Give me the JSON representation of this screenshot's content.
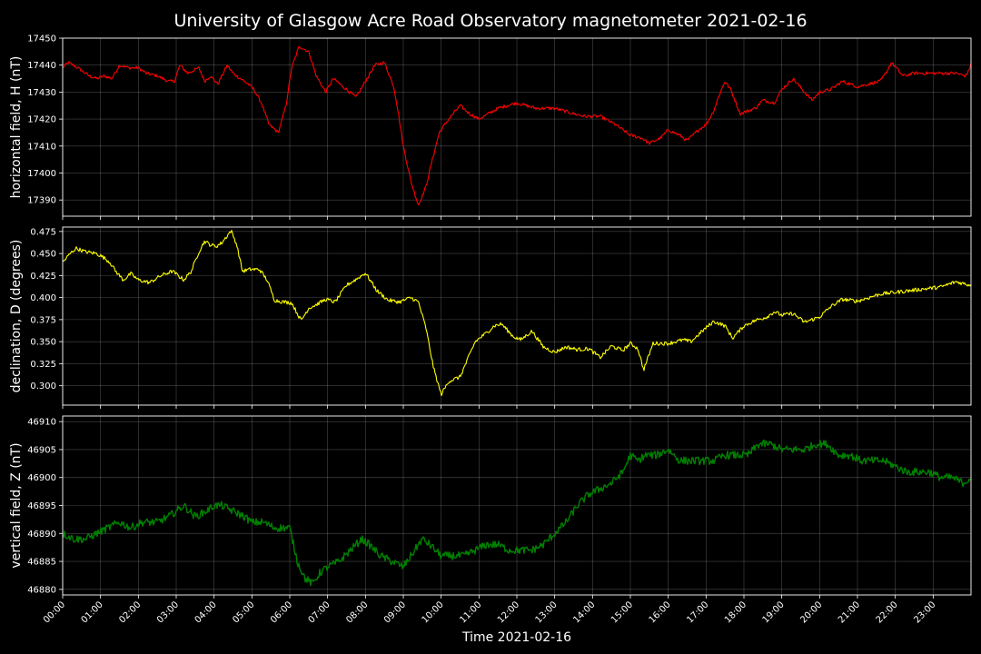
{
  "chart_data": {
    "type": "line",
    "title": "University of Glasgow Acre Road Observatory magnetometer 2021-02-16",
    "xlabel": "Time 2021-02-16",
    "x_ticks": [
      "00:00",
      "01:00",
      "02:00",
      "03:00",
      "04:00",
      "05:00",
      "06:00",
      "07:00",
      "08:00",
      "09:00",
      "10:00",
      "11:00",
      "12:00",
      "13:00",
      "14:00",
      "15:00",
      "16:00",
      "17:00",
      "18:00",
      "19:00",
      "20:00",
      "21:00",
      "22:00",
      "23:00"
    ],
    "xlim_hours": [
      0,
      24
    ],
    "grid": true,
    "panels": [
      {
        "ylabel": "horizontal field, H (nT)",
        "color": "#ff0000",
        "ylim": [
          17384,
          17450
        ],
        "yticks": [
          17390,
          17400,
          17410,
          17420,
          17430,
          17440,
          17450
        ],
        "noise": 0.6,
        "series": {
          "x": [
            0,
            0.15,
            0.4,
            0.7,
            0.9,
            1.1,
            1.3,
            1.5,
            1.75,
            2.0,
            2.2,
            2.5,
            2.8,
            2.95,
            3.1,
            3.3,
            3.6,
            3.75,
            3.9,
            4.1,
            4.35,
            4.5,
            4.7,
            4.9,
            5.05,
            5.25,
            5.45,
            5.7,
            5.9,
            6.05,
            6.25,
            6.5,
            6.7,
            6.95,
            7.15,
            7.5,
            7.75,
            8.0,
            8.25,
            8.5,
            8.75,
            8.85,
            9.0,
            9.2,
            9.4,
            9.6,
            9.75,
            9.95,
            10.2,
            10.5,
            10.75,
            11.0,
            11.5,
            12.0,
            12.5,
            13.0,
            13.5,
            13.8,
            14.2,
            14.6,
            15.0,
            15.3,
            15.5,
            15.8,
            16.0,
            16.3,
            16.5,
            16.8,
            17.0,
            17.2,
            17.35,
            17.5,
            17.65,
            17.9,
            18.3,
            18.5,
            18.8,
            19.0,
            19.3,
            19.6,
            19.8,
            20.0,
            20.3,
            20.6,
            21.0,
            21.3,
            21.6,
            21.75,
            21.9,
            22.2,
            22.5,
            22.8,
            23.2,
            23.6,
            23.85,
            23.95,
            24.0
          ],
          "values": [
            17439,
            17441,
            17439,
            17436,
            17435,
            17436,
            17435,
            17440,
            17439,
            17439,
            17437,
            17436,
            17434,
            17434,
            17440,
            17437,
            17439,
            17434,
            17436,
            17433,
            17440,
            17437,
            17435,
            17433,
            17431,
            17426,
            17418,
            17415,
            17425,
            17439,
            17447,
            17445,
            17436,
            17430,
            17435,
            17431,
            17428,
            17434,
            17440,
            17441,
            17432,
            17424,
            17410,
            17397,
            17388,
            17395,
            17404,
            17415,
            17420,
            17425,
            17422,
            17420,
            17424,
            17426,
            17424,
            17424,
            17422,
            17421,
            17421,
            17418,
            17414,
            17413,
            17411,
            17413,
            17416,
            17414,
            17412,
            17416,
            17418,
            17423,
            17429,
            17434,
            17431,
            17422,
            17424,
            17427,
            17426,
            17431,
            17435,
            17430,
            17427,
            17430,
            17431,
            17434,
            17432,
            17433,
            17434,
            17437,
            17441,
            17436,
            17437,
            17437,
            17437,
            17437,
            17436,
            17438,
            17441
          ]
        }
      },
      {
        "ylabel": "declination, D (degrees)",
        "color": "#ffff00",
        "ylim": [
          0.278,
          0.48
        ],
        "yticks": [
          0.3,
          0.325,
          0.35,
          0.375,
          0.4,
          0.425,
          0.45,
          0.475
        ],
        "noise": 0.0022,
        "series": {
          "x": [
            0,
            0.2,
            0.35,
            0.6,
            0.9,
            1.1,
            1.25,
            1.4,
            1.6,
            1.8,
            2.0,
            2.3,
            2.6,
            2.9,
            3.2,
            3.4,
            3.6,
            3.75,
            3.9,
            4.05,
            4.2,
            4.45,
            4.6,
            4.75,
            4.95,
            5.2,
            5.4,
            5.6,
            5.85,
            6.05,
            6.3,
            6.5,
            6.7,
            6.95,
            7.2,
            7.5,
            7.8,
            8.0,
            8.3,
            8.6,
            8.9,
            9.2,
            9.4,
            9.6,
            9.8,
            10.0,
            10.2,
            10.5,
            10.9,
            11.2,
            11.4,
            11.6,
            11.9,
            12.1,
            12.4,
            12.7,
            13.0,
            13.3,
            13.6,
            13.9,
            14.2,
            14.5,
            14.8,
            15.0,
            15.2,
            15.35,
            15.6,
            16.0,
            16.4,
            16.6,
            16.9,
            17.2,
            17.5,
            17.7,
            18.0,
            18.3,
            18.6,
            18.8,
            19.0,
            19.3,
            19.6,
            20.0,
            20.3,
            20.6,
            21.0,
            21.3,
            21.6,
            22.0,
            22.4,
            22.8,
            23.2,
            23.6,
            24.0
          ],
          "values": [
            0.44,
            0.45,
            0.456,
            0.452,
            0.45,
            0.445,
            0.44,
            0.43,
            0.42,
            0.427,
            0.42,
            0.417,
            0.425,
            0.43,
            0.42,
            0.43,
            0.452,
            0.464,
            0.46,
            0.458,
            0.462,
            0.476,
            0.46,
            0.43,
            0.432,
            0.432,
            0.42,
            0.397,
            0.395,
            0.394,
            0.374,
            0.388,
            0.392,
            0.398,
            0.395,
            0.414,
            0.422,
            0.428,
            0.408,
            0.397,
            0.395,
            0.4,
            0.395,
            0.365,
            0.32,
            0.29,
            0.305,
            0.31,
            0.35,
            0.36,
            0.368,
            0.37,
            0.356,
            0.352,
            0.362,
            0.344,
            0.338,
            0.344,
            0.341,
            0.342,
            0.332,
            0.345,
            0.34,
            0.348,
            0.342,
            0.318,
            0.348,
            0.348,
            0.352,
            0.35,
            0.362,
            0.373,
            0.368,
            0.354,
            0.368,
            0.374,
            0.378,
            0.384,
            0.38,
            0.382,
            0.372,
            0.378,
            0.39,
            0.398,
            0.396,
            0.4,
            0.404,
            0.406,
            0.408,
            0.41,
            0.412,
            0.418,
            0.414
          ]
        }
      },
      {
        "ylabel": "vertical field, Z (nT)",
        "color": "#008000",
        "ylim": [
          46879,
          46911
        ],
        "yticks": [
          46880,
          46885,
          46890,
          46895,
          46900,
          46905,
          46910
        ],
        "noise": 0.7,
        "series": {
          "x": [
            0,
            0.3,
            0.6,
            0.9,
            1.2,
            1.5,
            1.8,
            2.1,
            2.5,
            2.8,
            3.0,
            3.2,
            3.5,
            3.8,
            4.0,
            4.2,
            4.5,
            4.8,
            5.0,
            5.3,
            5.6,
            5.8,
            6.0,
            6.2,
            6.4,
            6.6,
            6.8,
            7.0,
            7.3,
            7.6,
            7.9,
            8.1,
            8.4,
            8.7,
            9.0,
            9.3,
            9.5,
            9.7,
            10.0,
            10.3,
            10.6,
            10.9,
            11.2,
            11.5,
            11.8,
            12.1,
            12.4,
            12.7,
            13.0,
            13.3,
            13.6,
            13.9,
            14.2,
            14.5,
            14.8,
            15.0,
            15.2,
            15.4,
            15.7,
            16.0,
            16.3,
            16.6,
            16.9,
            17.2,
            17.5,
            17.8,
            18.1,
            18.4,
            18.7,
            19.0,
            19.3,
            19.6,
            19.9,
            20.2,
            20.5,
            20.8,
            21.1,
            21.4,
            21.7,
            22.0,
            22.3,
            22.6,
            22.9,
            23.2,
            23.5,
            23.8,
            24.0
          ],
          "values": [
            46890,
            46889,
            46889,
            46890,
            46891,
            46892,
            46891,
            46892,
            46892,
            46893,
            46894,
            46895,
            46893,
            46894,
            46895,
            46895,
            46894,
            46893,
            46892,
            46892,
            46891,
            46891,
            46891,
            46885,
            46882,
            46881,
            46883,
            46884,
            46885,
            46887,
            46889,
            46888,
            46886,
            46885,
            46884,
            46887,
            46889,
            46888,
            46886,
            46886,
            46886,
            46887,
            46888,
            46888,
            46887,
            46887,
            46887,
            46888,
            46890,
            46892,
            46895,
            46897,
            46898,
            46899,
            46901,
            46904,
            46903,
            46904,
            46904,
            46905,
            46903,
            46903,
            46903,
            46903,
            46904,
            46904,
            46904,
            46906,
            46906,
            46905,
            46905,
            46905,
            46906,
            46906,
            46904,
            46904,
            46903,
            46903,
            46903,
            46902,
            46901,
            46901,
            46901,
            46900,
            46900,
            46899,
            46900
          ]
        }
      }
    ]
  }
}
